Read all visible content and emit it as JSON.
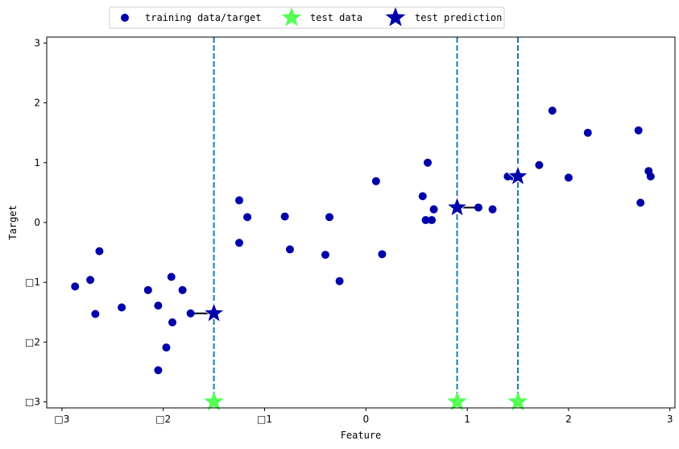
{
  "chart_data": {
    "type": "scatter",
    "xlabel": "Feature",
    "ylabel": "Target",
    "xlim": [
      -3.15,
      3.05
    ],
    "ylim": [
      -3.1,
      3.1
    ],
    "x_ticks": [
      -3,
      -2,
      -1,
      0,
      1,
      2,
      3
    ],
    "x_tick_labels": [
      "□3",
      "□2",
      "□1",
      "0",
      "1",
      "2",
      "3"
    ],
    "y_ticks": [
      -3,
      -2,
      -1,
      0,
      1,
      2,
      3
    ],
    "y_tick_labels": [
      "□3",
      "□2",
      "□1",
      "0",
      "1",
      "2",
      "3"
    ],
    "grid": false,
    "legend_position": "top-center",
    "colors": {
      "training": "#0000aa",
      "test_data": "#55ff55",
      "test_prediction": "#0000aa",
      "vlines": "#1f77b4",
      "neighbor_lines": "#000000"
    },
    "series": [
      {
        "name": "training data/target",
        "marker": "circle",
        "points": [
          [
            -2.87,
            -1.07
          ],
          [
            -2.72,
            -0.96
          ],
          [
            -2.67,
            -1.53
          ],
          [
            -2.63,
            -0.48
          ],
          [
            -2.41,
            -1.42
          ],
          [
            -2.15,
            -1.13
          ],
          [
            -2.05,
            -1.39
          ],
          [
            -2.05,
            -2.47
          ],
          [
            -1.97,
            -2.09
          ],
          [
            -1.92,
            -0.91
          ],
          [
            -1.91,
            -1.67
          ],
          [
            -1.81,
            -1.13
          ],
          [
            -1.73,
            -1.52
          ],
          [
            -1.25,
            0.37
          ],
          [
            -1.25,
            -0.34
          ],
          [
            -1.17,
            0.09
          ],
          [
            -0.8,
            0.1
          ],
          [
            -0.75,
            -0.45
          ],
          [
            -0.4,
            -0.54
          ],
          [
            -0.36,
            0.09
          ],
          [
            -0.26,
            -0.98
          ],
          [
            0.1,
            0.69
          ],
          [
            0.16,
            -0.53
          ],
          [
            0.56,
            0.44
          ],
          [
            0.59,
            0.04
          ],
          [
            0.61,
            1.0
          ],
          [
            0.65,
            0.04
          ],
          [
            0.67,
            0.22
          ],
          [
            1.11,
            0.25
          ],
          [
            1.25,
            0.22
          ],
          [
            1.4,
            0.77
          ],
          [
            1.45,
            0.77
          ],
          [
            1.71,
            0.96
          ],
          [
            1.84,
            1.87
          ],
          [
            2.0,
            0.75
          ],
          [
            2.19,
            1.5
          ],
          [
            2.69,
            1.54
          ],
          [
            2.71,
            0.33
          ],
          [
            2.79,
            0.86
          ],
          [
            2.81,
            0.77
          ]
        ]
      },
      {
        "name": "test data",
        "marker": "star",
        "points": [
          [
            -1.5,
            -3.0
          ],
          [
            0.9,
            -3.0
          ],
          [
            1.5,
            -3.0
          ]
        ]
      },
      {
        "name": "test prediction",
        "marker": "star",
        "points": [
          [
            -1.5,
            -1.52
          ],
          [
            0.9,
            0.25
          ],
          [
            1.5,
            0.77
          ]
        ]
      }
    ],
    "vertical_lines_x": [
      -1.5,
      0.9,
      1.5
    ],
    "neighbor_segments": [
      [
        [
          -1.73,
          -1.52
        ],
        [
          -1.5,
          -1.52
        ]
      ],
      [
        [
          0.9,
          0.25
        ],
        [
          1.11,
          0.25
        ]
      ],
      [
        [
          1.45,
          0.77
        ],
        [
          1.5,
          0.77
        ]
      ]
    ]
  }
}
